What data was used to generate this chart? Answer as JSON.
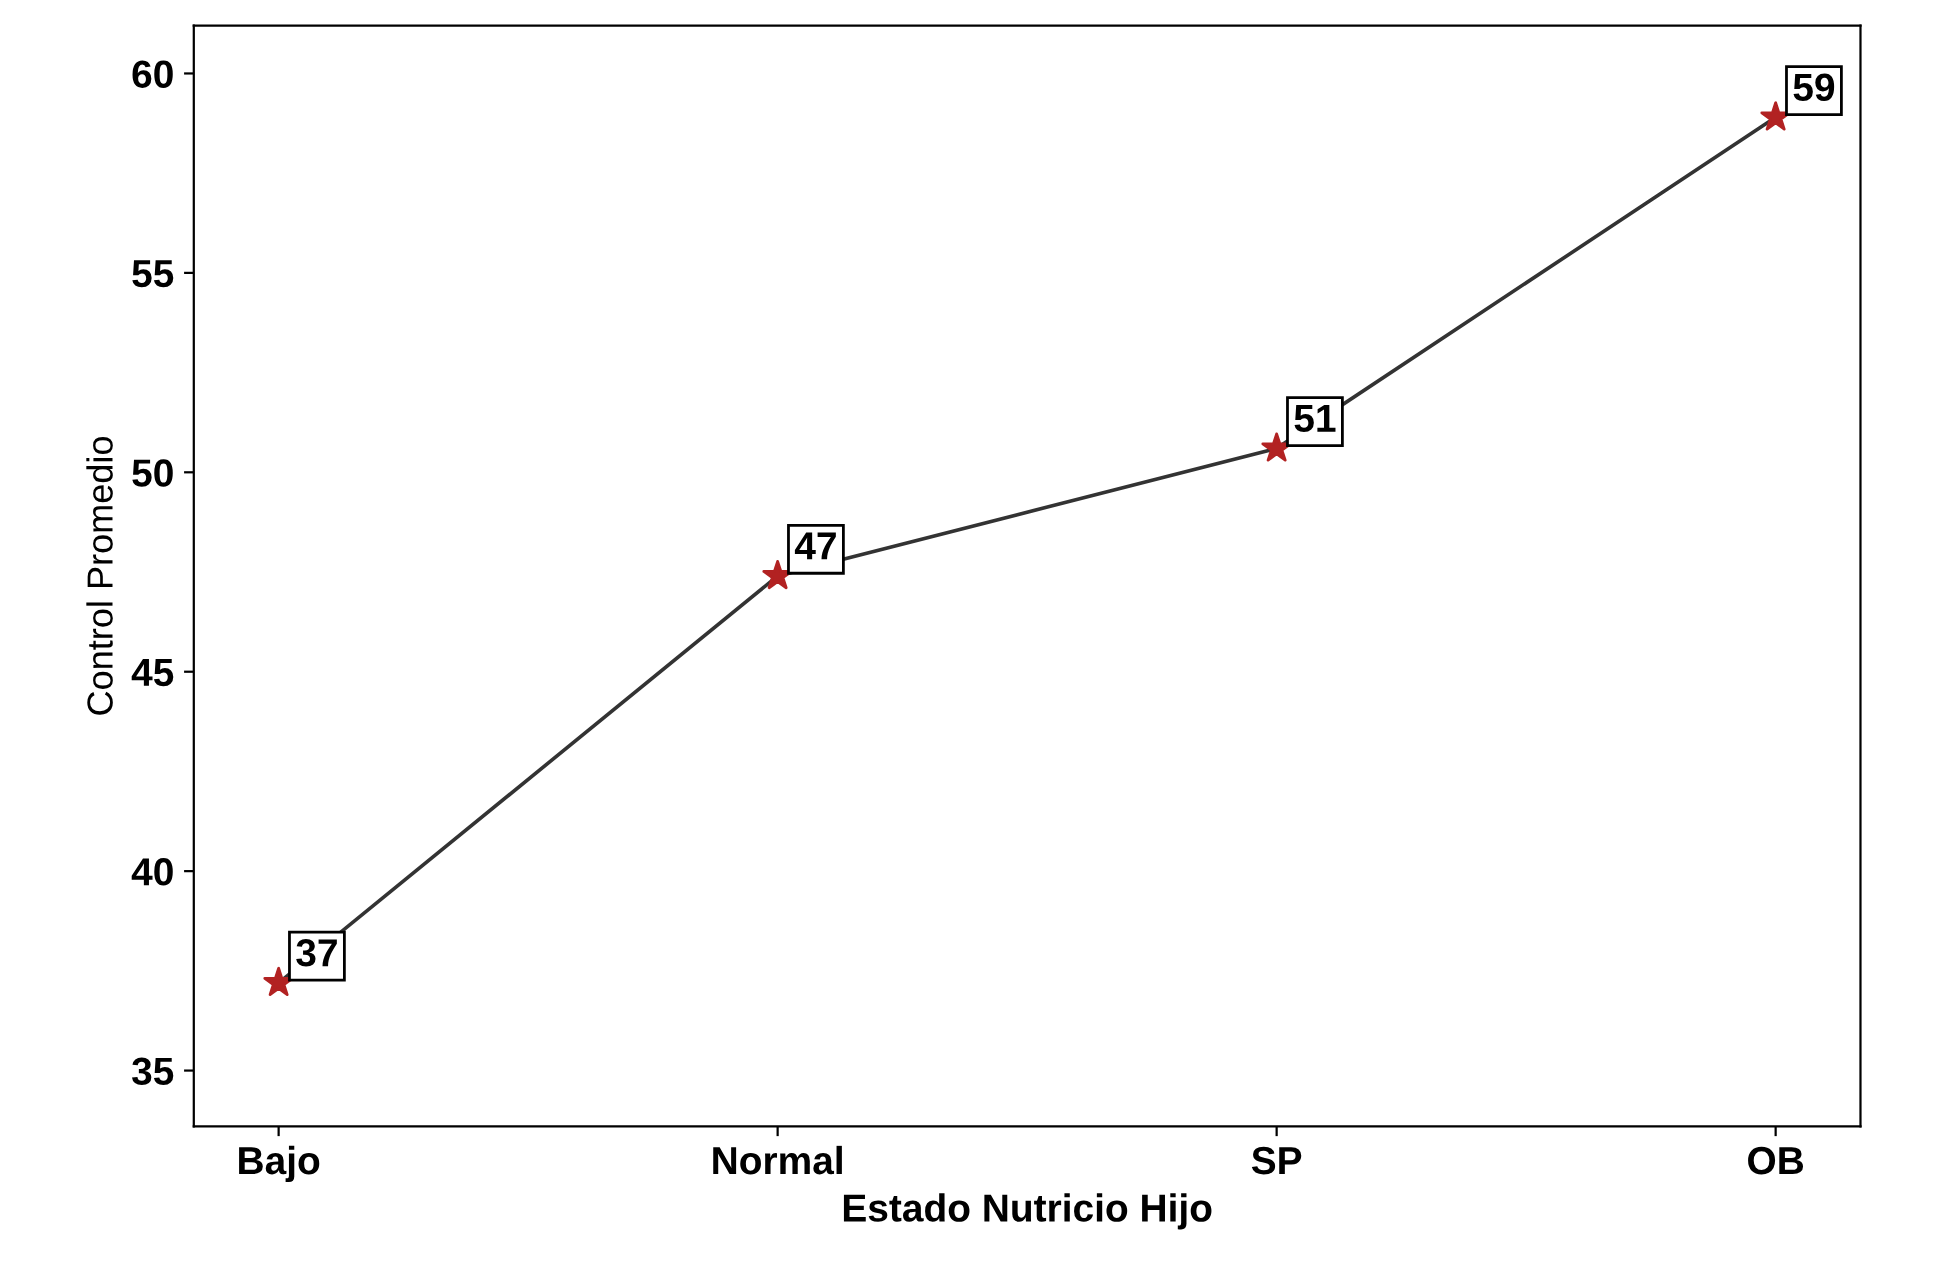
{
  "chart_data": {
    "type": "line",
    "xlabel": "Estado Nutricio Hijo",
    "ylabel": "Control Promedio",
    "categories": [
      "Bajo",
      "Normal",
      "SP",
      "OB"
    ],
    "series": [
      {
        "color": "#333333",
        "values": [
          37.2,
          47.4,
          50.6,
          58.9
        ],
        "colors": [
          "#b22222",
          "#b22222",
          "#b22222",
          "#b22222"
        ],
        "value_labels": [
          "37",
          "47",
          "51",
          "59"
        ]
      }
    ],
    "marker": "star",
    "line_style": "solid",
    "ylim": [
      33.6,
      61.2
    ],
    "yticks": [
      35,
      40,
      45,
      50,
      55,
      60
    ],
    "grid": false,
    "legend": false
  }
}
